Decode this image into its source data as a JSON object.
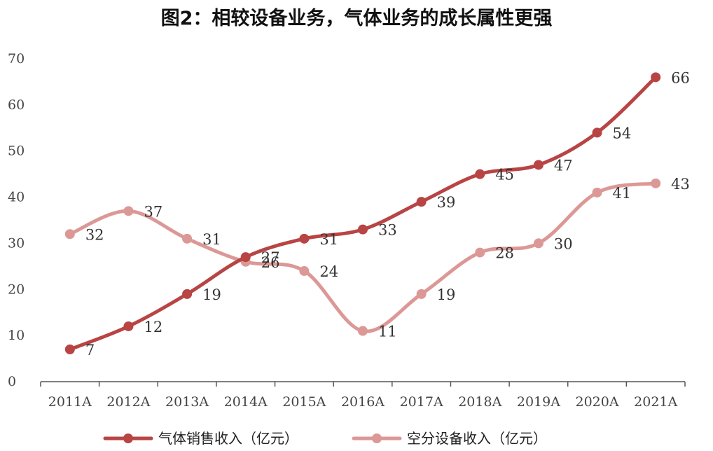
{
  "title": "图2：相较设备业务，气体业务的成长属性更强",
  "chart_data": {
    "type": "line",
    "title": "图2：相较设备业务，气体业务的成长属性更强",
    "categories": [
      "2011A",
      "2012A",
      "2013A",
      "2014A",
      "2015A",
      "2016A",
      "2017A",
      "2018A",
      "2019A",
      "2020A",
      "2021A"
    ],
    "ylim": [
      0,
      70
    ],
    "yticks": [
      0,
      10,
      20,
      30,
      40,
      50,
      60,
      70
    ],
    "grid": false,
    "legend_position": "bottom",
    "smooth": true,
    "series": [
      {
        "name": "气体销售收入（亿元）",
        "color": "#b84444",
        "values": [
          7,
          12,
          19,
          27,
          31,
          33,
          39,
          45,
          47,
          54,
          66
        ]
      },
      {
        "name": "空分设备收入（亿元）",
        "color": "#dc9896",
        "values": [
          32,
          37,
          31,
          26,
          24,
          11,
          19,
          28,
          30,
          41,
          43
        ]
      }
    ]
  }
}
